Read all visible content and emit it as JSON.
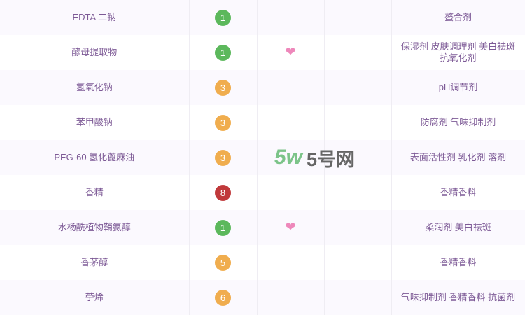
{
  "colors": {
    "green": "#5cb85c",
    "orange": "#f0ad4e",
    "red": "#c0393b",
    "heart": "#ee88bb",
    "text": "#7d5a96"
  },
  "rows": [
    {
      "name": "EDTA 二钠",
      "score": "1",
      "level": "green",
      "heart": false,
      "function": "螯合剂"
    },
    {
      "name": "酵母提取物",
      "score": "1",
      "level": "green",
      "heart": true,
      "function": "保湿剂 皮肤调理剂 美白祛斑 抗氧化剂"
    },
    {
      "name": "氢氧化钠",
      "score": "3",
      "level": "orange",
      "heart": false,
      "function": "pH调节剂"
    },
    {
      "name": "苯甲酸钠",
      "score": "3",
      "level": "orange",
      "heart": false,
      "function": "防腐剂 气味抑制剂"
    },
    {
      "name": "PEG-60 氢化蓖麻油",
      "score": "3",
      "level": "orange",
      "heart": false,
      "function": "表面活性剂 乳化剂 溶剂"
    },
    {
      "name": "香精",
      "score": "8",
      "level": "red",
      "heart": false,
      "function": "香精香料"
    },
    {
      "name": "水杨酰植物鞘氨醇",
      "score": "1",
      "level": "green",
      "heart": true,
      "function": "柔润剂 美白祛斑"
    },
    {
      "name": "香茅醇",
      "score": "5",
      "level": "orange",
      "heart": false,
      "function": "香精香料"
    },
    {
      "name": "苧烯",
      "score": "6",
      "level": "orange",
      "heart": false,
      "function": "气味抑制剂 香精香料 抗菌剂"
    }
  ],
  "watermark": {
    "logo_mark": "5w",
    "logo_text": "5号网"
  }
}
